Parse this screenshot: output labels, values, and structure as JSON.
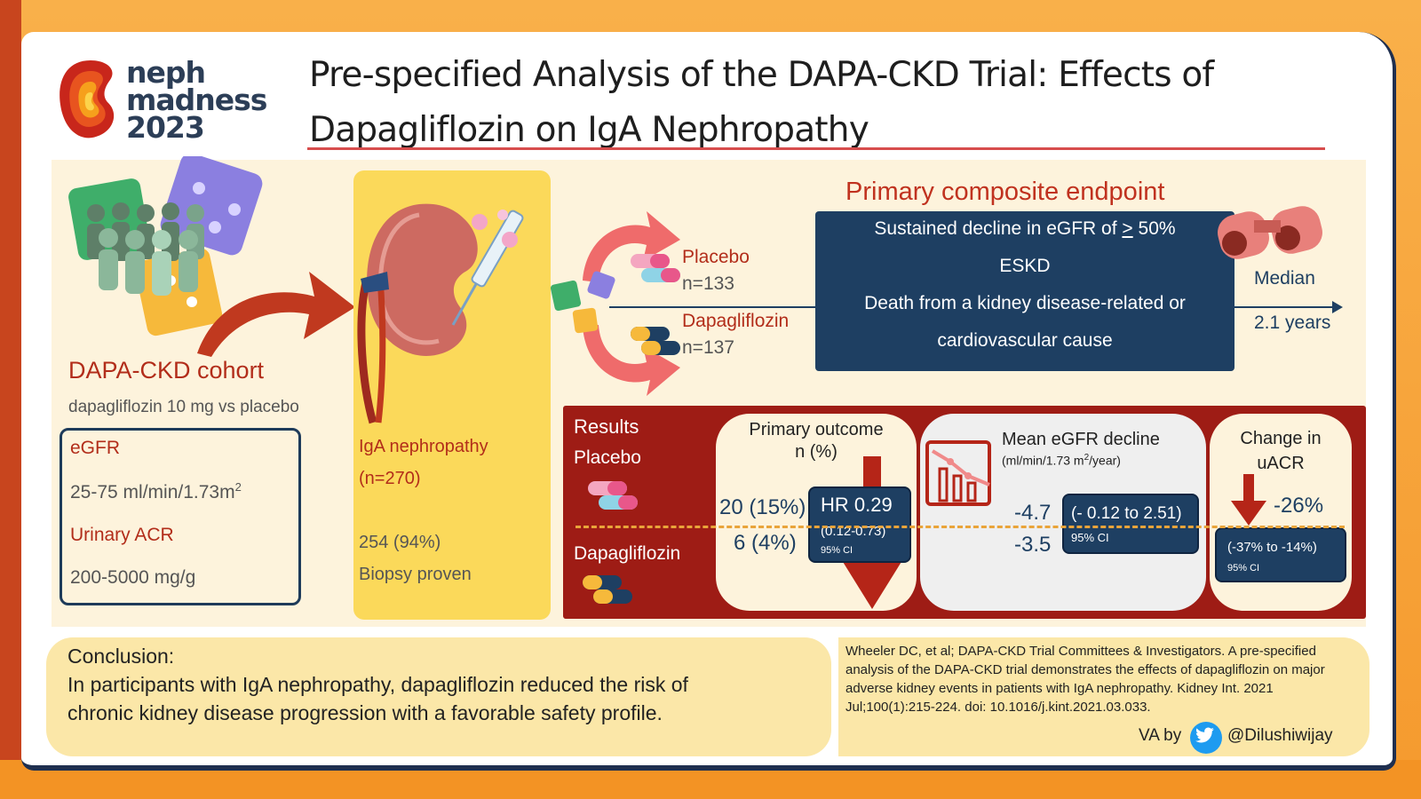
{
  "logo": {
    "line1": "neph",
    "line2": "madness",
    "line3": "2023"
  },
  "title": "Pre-specified Analysis of the DAPA-CKD Trial: Effects of Dapagliflozin on IgA Nephropathy",
  "cohort": {
    "title": "DAPA-CKD cohort",
    "subtitle": "dapagliflozin 10 mg vs placebo",
    "egfr_label": "eGFR",
    "egfr_value": "25-75 ml/min/1.73m",
    "egfr_sup": "2",
    "uacr_label": "Urinary ACR",
    "uacr_value": "200-5000 mg/g"
  },
  "iga": {
    "label": "IgA nephropathy",
    "n": "(n=270)",
    "biopsy_count": "254 (94%)",
    "biopsy_label": "Biopsy proven"
  },
  "arms": {
    "placebo_label": "Placebo",
    "placebo_n": "n=133",
    "dapa_label": "Dapagliflozin",
    "dapa_n": "n=137"
  },
  "endpoint": {
    "title": "Primary composite endpoint",
    "line1_pre": "Sustained decline in eGFR of ",
    "line1_sym": ">",
    "line1_post": " 50%",
    "line2": "ESKD",
    "line3": "Death from a kidney disease-related or",
    "line4": "cardiovascular cause"
  },
  "median": {
    "label": "Median",
    "value": "2.1 years"
  },
  "results": {
    "title": "Results",
    "placebo": "Placebo",
    "dapa": "Dapagliflozin",
    "primary": {
      "title1": "Primary outcome",
      "title2": "n (%)",
      "placebo_value": "20 (15%)",
      "dapa_value": "6 (4%)",
      "hr": "HR 0.29",
      "ci": "(0.12-0.73)",
      "ci_label": "95% CI"
    },
    "egfr": {
      "title": "Mean eGFR decline",
      "unit_pre": "(ml/min/1.73 m",
      "unit_sup": "2",
      "unit_post": "/year)",
      "placebo_value": "-4.7",
      "dapa_value": "-3.5",
      "ci": "(- 0.12 to 2.51)",
      "ci_label": "95% CI"
    },
    "uacr": {
      "title1": "Change in",
      "title2": "uACR",
      "value": "-26%",
      "ci": "(-37% to -14%)",
      "ci_label": "95% CI"
    }
  },
  "conclusion": {
    "label": "Conclusion:",
    "line1": "In participants with IgA nephropathy, dapagliflozin reduced the risk of",
    "line2": "chronic kidney disease progression with a favorable safety profile."
  },
  "reference": "Wheeler DC, et al; DAPA-CKD Trial Committees & Investigators. A pre-specified analysis of the DAPA-CKD trial demonstrates the effects of dapagliflozin on major adverse kidney events in patients with IgA nephropathy. Kidney Int. 2021 Jul;100(1):215-224. doi: 10.1016/j.kint.2021.03.033.",
  "credit": {
    "va": "VA by",
    "handle": "@Dilushiwijay"
  },
  "colors": {
    "navy": "#1e3f62",
    "red": "#b22d1a",
    "dark_red": "#9e1c15",
    "yellow": "#fbd95a",
    "cream": "#fdf3dc",
    "orange": "#f59a2e"
  },
  "icons": [
    "logo-kidney-icon",
    "people-group-icon",
    "dice-icon",
    "kidney-icon",
    "syringe-icon",
    "pill-icon",
    "binoculars-icon",
    "chart-decline-icon",
    "down-arrow-icon",
    "twitter-icon"
  ]
}
